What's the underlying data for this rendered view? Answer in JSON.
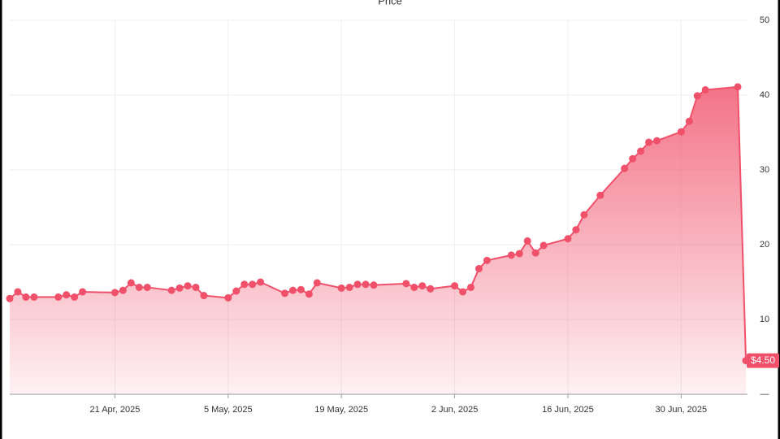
{
  "chart_data": {
    "type": "area",
    "title": "Price",
    "x": [
      "2025-04-08",
      "2025-04-09",
      "2025-04-10",
      "2025-04-11",
      "2025-04-14",
      "2025-04-15",
      "2025-04-16",
      "2025-04-17",
      "2025-04-21",
      "2025-04-22",
      "2025-04-23",
      "2025-04-24",
      "2025-04-25",
      "2025-04-28",
      "2025-04-29",
      "2025-04-30",
      "2025-05-01",
      "2025-05-02",
      "2025-05-05",
      "2025-05-06",
      "2025-05-07",
      "2025-05-08",
      "2025-05-09",
      "2025-05-12",
      "2025-05-13",
      "2025-05-14",
      "2025-05-15",
      "2025-05-16",
      "2025-05-19",
      "2025-05-20",
      "2025-05-21",
      "2025-05-22",
      "2025-05-23",
      "2025-05-27",
      "2025-05-28",
      "2025-05-29",
      "2025-05-30",
      "2025-06-02",
      "2025-06-03",
      "2025-06-04",
      "2025-06-05",
      "2025-06-06",
      "2025-06-09",
      "2025-06-10",
      "2025-06-11",
      "2025-06-12",
      "2025-06-13",
      "2025-06-16",
      "2025-06-17",
      "2025-06-18",
      "2025-06-20",
      "2025-06-23",
      "2025-06-24",
      "2025-06-25",
      "2025-06-26",
      "2025-06-27",
      "2025-06-30",
      "2025-07-01",
      "2025-07-02",
      "2025-07-03",
      "2025-07-07",
      "2025-07-08"
    ],
    "series": [
      {
        "color": "#f0506a",
        "values": [
          12.8,
          13.7,
          13.0,
          13.0,
          13.0,
          13.3,
          13.0,
          13.7,
          13.6,
          13.9,
          14.9,
          14.3,
          14.3,
          13.9,
          14.2,
          14.5,
          14.3,
          13.2,
          12.9,
          13.8,
          14.7,
          14.7,
          15.0,
          13.5,
          13.9,
          14.0,
          13.4,
          14.9,
          14.2,
          14.3,
          14.7,
          14.7,
          14.6,
          14.8,
          14.3,
          14.5,
          14.1,
          14.5,
          13.7,
          14.3,
          16.8,
          17.9,
          18.6,
          18.8,
          20.5,
          18.9,
          19.9,
          20.8,
          22.0,
          24.0,
          26.6,
          30.2,
          31.5,
          32.5,
          33.7,
          33.9,
          35.1,
          36.5,
          39.9,
          40.7,
          41.1,
          4.5
        ],
        "last_value_label": "$4.50"
      }
    ],
    "xlim": [
      "2025-04-08",
      "2025-07-08"
    ],
    "xticks": [
      {
        "value": "2025-04-21",
        "label": "21 Apr, 2025"
      },
      {
        "value": "2025-05-05",
        "label": "5 May, 2025"
      },
      {
        "value": "2025-05-19",
        "label": "19 May, 2025"
      },
      {
        "value": "2025-06-02",
        "label": "2 Jun, 2025"
      },
      {
        "value": "2025-06-16",
        "label": "16 Jun, 2025"
      },
      {
        "value": "2025-06-30",
        "label": "30 Jun, 2025"
      }
    ],
    "ylim": [
      0,
      50
    ],
    "yticks": [
      {
        "value": 0,
        "label": "—"
      },
      10,
      20,
      30,
      40,
      50
    ],
    "grid": true
  }
}
